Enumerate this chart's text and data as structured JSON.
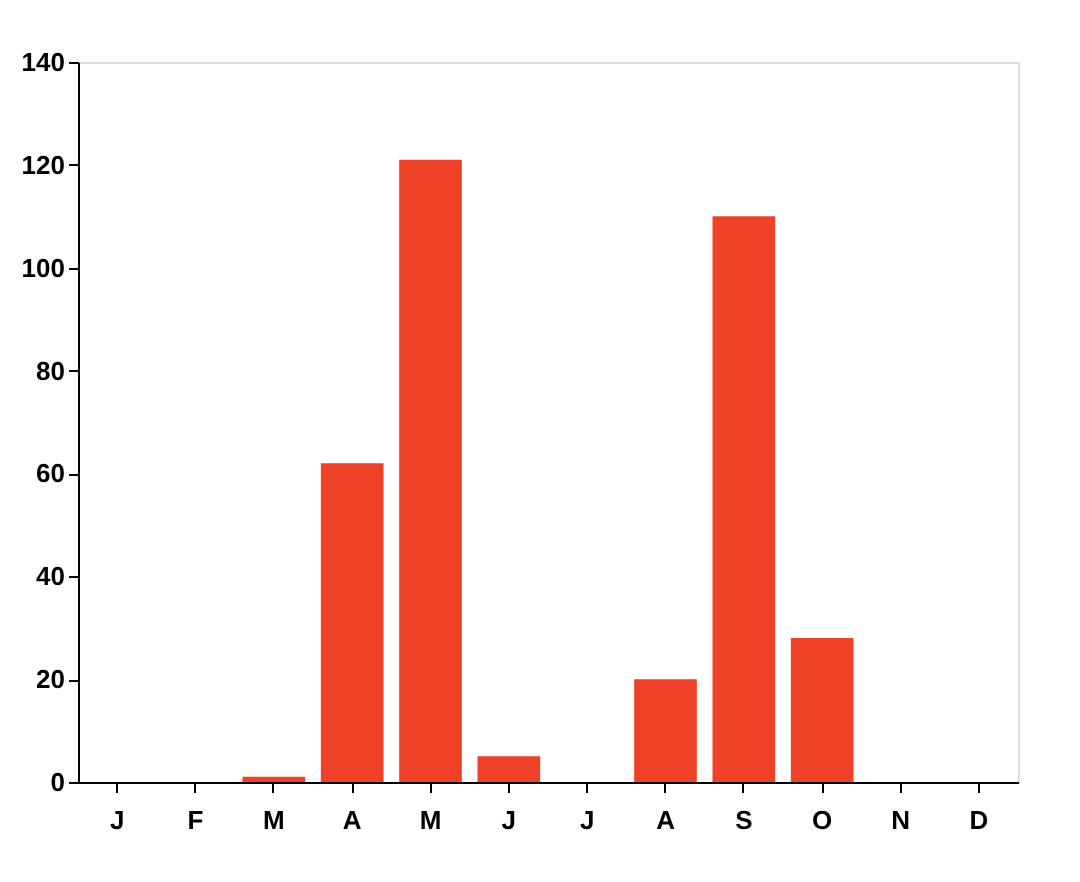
{
  "chart_data": {
    "type": "bar",
    "categories": [
      "J",
      "F",
      "M",
      "A",
      "M",
      "J",
      "J",
      "A",
      "S",
      "O",
      "N",
      "D"
    ],
    "values": [
      0,
      0,
      1,
      62,
      121,
      5,
      0,
      20,
      110,
      28,
      0,
      0
    ],
    "color": "#ee4128",
    "ylim": [
      0,
      140
    ],
    "yticks": [
      0,
      20,
      40,
      60,
      80,
      100,
      120,
      140
    ],
    "grid": false
  }
}
